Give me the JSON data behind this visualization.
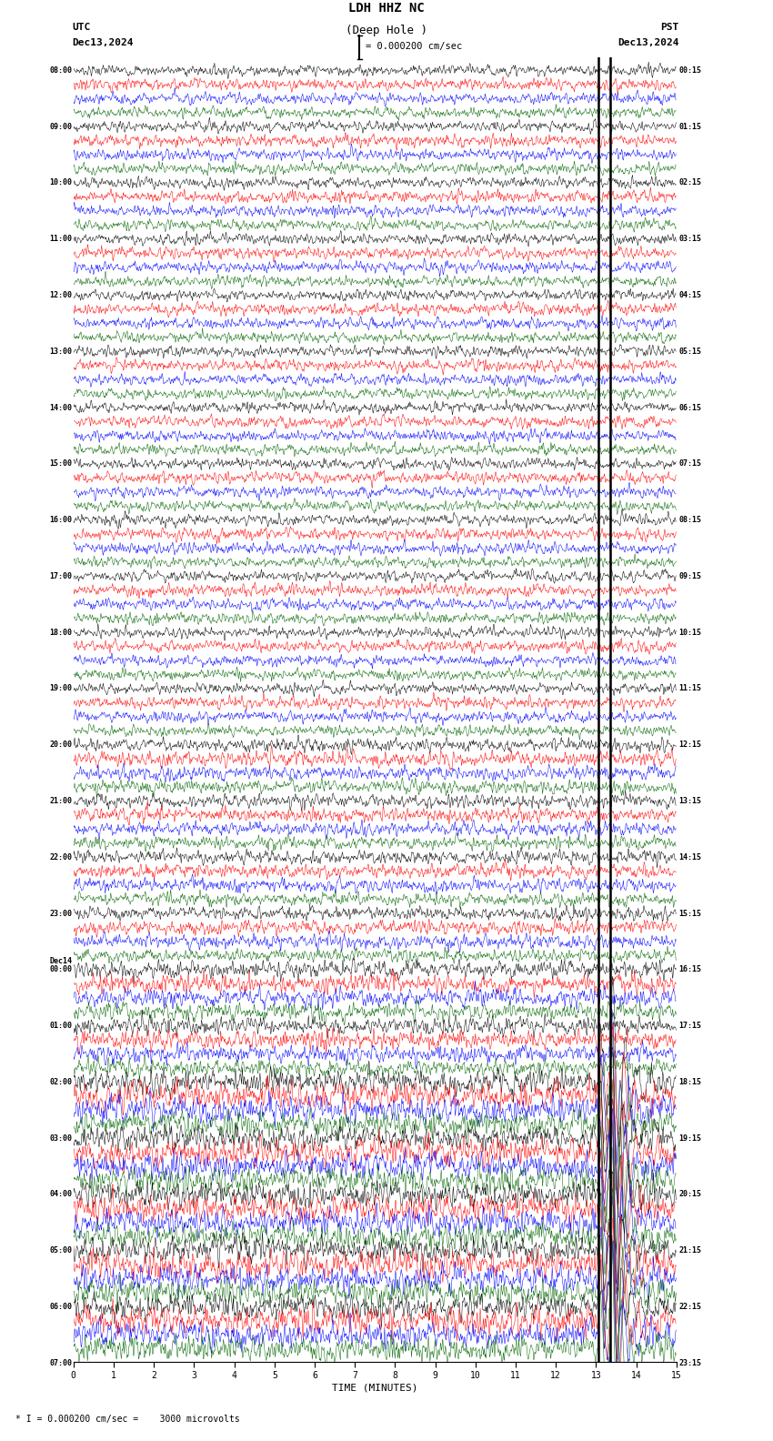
{
  "title_line1": "LDH HHZ NC",
  "title_line2": "(Deep Hole )",
  "scale_text": "= 0.000200 cm/sec",
  "utc_label": "UTC",
  "pst_label": "PST",
  "date_left": "Dec13,2024",
  "date_right": "Dec13,2024",
  "bottom_label": "TIME (MINUTES)",
  "bottom_note": "* I = 0.000200 cm/sec =    3000 microvolts",
  "xlabel_ticks": [
    0,
    1,
    2,
    3,
    4,
    5,
    6,
    7,
    8,
    9,
    10,
    11,
    12,
    13,
    14,
    15
  ],
  "utc_times": [
    "08:00",
    "",
    "",
    "",
    "09:00",
    "",
    "",
    "",
    "10:00",
    "",
    "",
    "",
    "11:00",
    "",
    "",
    "",
    "12:00",
    "",
    "",
    "",
    "13:00",
    "",
    "",
    "",
    "14:00",
    "",
    "",
    "",
    "15:00",
    "",
    "",
    "",
    "16:00",
    "",
    "",
    "",
    "17:00",
    "",
    "",
    "",
    "18:00",
    "",
    "",
    "",
    "19:00",
    "",
    "",
    "",
    "20:00",
    "",
    "",
    "",
    "21:00",
    "",
    "",
    "",
    "22:00",
    "",
    "",
    "",
    "23:00",
    "",
    "",
    "",
    "Dec14\n00:00",
    "",
    "",
    "",
    "01:00",
    "",
    "",
    "",
    "02:00",
    "",
    "",
    "",
    "03:00",
    "",
    "",
    "",
    "04:00",
    "",
    "",
    "",
    "05:00",
    "",
    "",
    "",
    "06:00",
    "",
    "",
    "",
    "07:00",
    "",
    "",
    ""
  ],
  "pst_times": [
    "00:15",
    "",
    "",
    "",
    "01:15",
    "",
    "",
    "",
    "02:15",
    "",
    "",
    "",
    "03:15",
    "",
    "",
    "",
    "04:15",
    "",
    "",
    "",
    "05:15",
    "",
    "",
    "",
    "06:15",
    "",
    "",
    "",
    "07:15",
    "",
    "",
    "",
    "08:15",
    "",
    "",
    "",
    "09:15",
    "",
    "",
    "",
    "10:15",
    "",
    "",
    "",
    "11:15",
    "",
    "",
    "",
    "12:15",
    "",
    "",
    "",
    "13:15",
    "",
    "",
    "",
    "14:15",
    "",
    "",
    "",
    "15:15",
    "",
    "",
    "",
    "16:15",
    "",
    "",
    "",
    "17:15",
    "",
    "",
    "",
    "18:15",
    "",
    "",
    "",
    "19:15",
    "",
    "",
    "",
    "20:15",
    "",
    "",
    "",
    "21:15",
    "",
    "",
    "",
    "22:15",
    "",
    "",
    "",
    "23:15",
    "",
    "",
    ""
  ],
  "n_hours": 23,
  "traces_per_hour": 4,
  "minutes": 15,
  "bg_color": "#ffffff",
  "colors": [
    "#000000",
    "#ff0000",
    "#0000ff",
    "#006400"
  ],
  "line_width": 0.35,
  "event_minute": 13.05,
  "event_minute2": 13.35,
  "figsize": [
    8.5,
    15.84
  ],
  "dpi": 100
}
